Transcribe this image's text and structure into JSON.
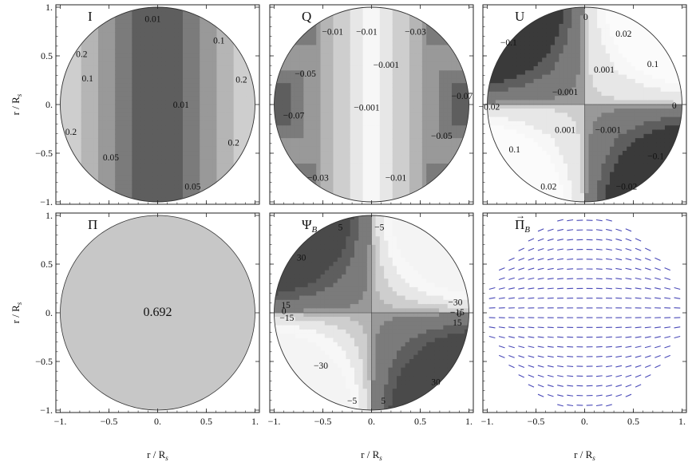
{
  "figure": {
    "axis_label_x": "r / R",
    "axis_label_y": "r / R",
    "axis_label_sub": "s"
  },
  "colors": {
    "gray1": "#5e5e5e",
    "gray2": "#7b7b7b",
    "gray3": "#999999",
    "gray4": "#b5b5b5",
    "gray5": "#cecece",
    "gray6": "#e7e7e7",
    "gray7": "#f7f7f7",
    "uniform": "#c7c7c7",
    "dash": "#4a4ab8",
    "line": "#333333"
  },
  "chart_data": [
    {
      "type": "heatmap",
      "title": "I",
      "xlim": [
        -1,
        1
      ],
      "ylim": [
        -1,
        1
      ],
      "x_ticks": [
        "−1.",
        "−0.5",
        "0.",
        "0.5",
        "1."
      ],
      "y_ticks": [
        "1.",
        "0.5",
        "0.",
        "−0.5",
        "−1."
      ],
      "contour_labels": [
        {
          "text": "0.01",
          "x": -0.05,
          "y": 0.88
        },
        {
          "text": "0.1",
          "x": 0.63,
          "y": 0.66
        },
        {
          "text": "0.2",
          "x": -0.78,
          "y": 0.52
        },
        {
          "text": "0.1",
          "x": -0.72,
          "y": 0.27
        },
        {
          "text": "0.2",
          "x": 0.86,
          "y": 0.26
        },
        {
          "text": "0.01",
          "x": 0.24,
          "y": 0.0
        },
        {
          "text": "0.2",
          "x": -0.89,
          "y": -0.28
        },
        {
          "text": "0.2",
          "x": 0.78,
          "y": -0.39
        },
        {
          "text": "0.05",
          "x": -0.48,
          "y": -0.54
        },
        {
          "text": "0.05",
          "x": 0.36,
          "y": -0.84
        }
      ]
    },
    {
      "type": "heatmap",
      "title": "Q",
      "xlim": [
        -1,
        1
      ],
      "ylim": [
        -1,
        1
      ],
      "x_ticks": [
        "−1.",
        "−0.5",
        "0.",
        "0.5",
        "1."
      ],
      "y_ticks": [
        "1.",
        "0.5",
        "0.",
        "−0.5",
        "−1."
      ],
      "contour_labels": [
        {
          "text": "−0.01",
          "x": -0.4,
          "y": 0.75
        },
        {
          "text": "−0.01",
          "x": -0.05,
          "y": 0.75
        },
        {
          "text": "−0.03",
          "x": 0.45,
          "y": 0.75
        },
        {
          "text": "−0.001",
          "x": 0.15,
          "y": 0.41
        },
        {
          "text": "−0.05",
          "x": -0.68,
          "y": 0.32
        },
        {
          "text": "−0.07",
          "x": 0.93,
          "y": 0.09
        },
        {
          "text": "−0.001",
          "x": -0.05,
          "y": -0.03
        },
        {
          "text": "−0.07",
          "x": -0.8,
          "y": -0.11
        },
        {
          "text": "−0.05",
          "x": 0.72,
          "y": -0.32
        },
        {
          "text": "−0.03",
          "x": -0.55,
          "y": -0.75
        },
        {
          "text": "−0.01",
          "x": 0.25,
          "y": -0.75
        }
      ]
    },
    {
      "type": "heatmap",
      "title": "U",
      "xlim": [
        -1,
        1
      ],
      "ylim": [
        -1,
        1
      ],
      "x_ticks": [
        "−1.",
        "−0.5",
        "0.",
        "0.5",
        "1."
      ],
      "y_ticks": [
        "1.",
        "0.5",
        "0.",
        "−0.5",
        "−1."
      ],
      "contour_labels": [
        {
          "text": "0",
          "x": 0.01,
          "y": 0.9
        },
        {
          "text": "−0.1",
          "x": -0.78,
          "y": 0.64
        },
        {
          "text": "0.02",
          "x": 0.4,
          "y": 0.73
        },
        {
          "text": "0.1",
          "x": 0.7,
          "y": 0.42
        },
        {
          "text": "0.001",
          "x": 0.2,
          "y": 0.36
        },
        {
          "text": "−0.001",
          "x": -0.2,
          "y": 0.13
        },
        {
          "text": "−0.02",
          "x": -0.98,
          "y": -0.02
        },
        {
          "text": "0",
          "x": 0.92,
          "y": -0.01
        },
        {
          "text": "0.001",
          "x": -0.2,
          "y": -0.26
        },
        {
          "text": "−0.001",
          "x": 0.24,
          "y": -0.26
        },
        {
          "text": "0.1",
          "x": -0.72,
          "y": -0.46
        },
        {
          "text": "−0.1",
          "x": 0.73,
          "y": -0.53
        },
        {
          "text": "0.02",
          "x": -0.37,
          "y": -0.84
        },
        {
          "text": "−0.02",
          "x": 0.43,
          "y": -0.84
        }
      ]
    },
    {
      "type": "heatmap",
      "title": "Π",
      "xlim": [
        -1,
        1
      ],
      "ylim": [
        -1,
        1
      ],
      "x_ticks": [
        "−1.",
        "−0.5",
        "0.",
        "0.5",
        "1."
      ],
      "y_ticks": [
        "1.",
        "0.5",
        "0.",
        "−0.5",
        "−1."
      ],
      "uniform_value": 0.692,
      "contour_labels": [
        {
          "text": "0.692",
          "x": 0.0,
          "y": 0.0
        }
      ]
    },
    {
      "type": "heatmap",
      "title": "Ψ",
      "title_sub": "B",
      "xlim": [
        -1,
        1
      ],
      "ylim": [
        -1,
        1
      ],
      "x_ticks": [
        "−1.",
        "−0.5",
        "0.",
        "0.5",
        "1."
      ],
      "y_ticks": [
        "1.",
        "0.5",
        "0.",
        "−0.5",
        "−1."
      ],
      "contour_labels": [
        {
          "text": "5",
          "x": -0.32,
          "y": 0.88
        },
        {
          "text": "−5",
          "x": 0.08,
          "y": 0.88
        },
        {
          "text": "30",
          "x": -0.72,
          "y": 0.57
        },
        {
          "text": "−30",
          "x": 0.86,
          "y": 0.11
        },
        {
          "text": "15",
          "x": -0.88,
          "y": 0.08
        },
        {
          "text": "−15",
          "x": 0.88,
          "y": 0.01
        },
        {
          "text": "0",
          "x": -0.9,
          "y": 0.02
        },
        {
          "text": "0",
          "x": 0.9,
          "y": -0.01
        },
        {
          "text": "−15",
          "x": -0.87,
          "y": -0.05
        },
        {
          "text": "15",
          "x": 0.88,
          "y": -0.1
        },
        {
          "text": "−30",
          "x": -0.52,
          "y": -0.54
        },
        {
          "text": "30",
          "x": 0.66,
          "y": -0.71
        },
        {
          "text": "−5",
          "x": -0.2,
          "y": -0.9
        },
        {
          "text": "5",
          "x": 0.12,
          "y": -0.9
        }
      ]
    },
    {
      "type": "scatter",
      "title": "Π",
      "title_sub": "B",
      "title_arrow": true,
      "xlim": [
        -1,
        1
      ],
      "ylim": [
        -1,
        1
      ],
      "x_ticks": [
        "−1.",
        "−0.5",
        "0.",
        "0.5",
        "1."
      ],
      "y_ticks": [
        "1.",
        "0.5",
        "0.",
        "−0.5",
        "−1."
      ],
      "field": "polarization direction segments on a uniform grid inside the unit disk",
      "grid_spacing": 0.1
    }
  ]
}
